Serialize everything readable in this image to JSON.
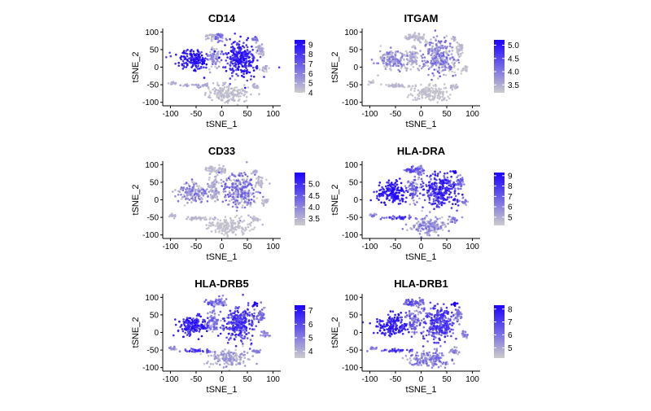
{
  "figure": {
    "background": "#ffffff",
    "low_color": "#cccccc",
    "high_color": "#1a00ff"
  },
  "chart_data": [
    {
      "type": "scatter",
      "title": "CD14",
      "xlabel": "tSNE_1",
      "ylabel": "tSNE_2",
      "xlim": [
        -115,
        115
      ],
      "ylim": [
        -110,
        110
      ],
      "xticks": [
        "-100",
        "-50",
        "0",
        "50",
        "100"
      ],
      "xtick_values": [
        -100,
        -50,
        0,
        50,
        100
      ],
      "yticks": [
        "100",
        "50",
        "0",
        "-50",
        "-100"
      ],
      "ytick_values": [
        100,
        50,
        0,
        -50,
        -100
      ],
      "color_scale": {
        "min": 4,
        "max": 9.5,
        "ticks": [
          "9",
          "8",
          "7",
          "6",
          "5",
          "4"
        ],
        "tick_values": [
          9,
          8,
          7,
          6,
          5,
          4
        ]
      },
      "clusters": [
        {
          "name": "left-mass",
          "cx": -55,
          "cy": 20,
          "sx": 18,
          "sy": 16,
          "level": 0.85,
          "spread": 0.18
        },
        {
          "name": "upper-left-small",
          "cx": -20,
          "cy": 85,
          "sx": 8,
          "sy": 5,
          "level": 0.1,
          "spread": 0.1
        },
        {
          "name": "mid-upper",
          "cx": -3,
          "cy": 85,
          "sx": 6,
          "sy": 7,
          "level": 0.35,
          "spread": 0.25
        },
        {
          "name": "mid-strand",
          "cx": -15,
          "cy": 30,
          "sx": 6,
          "sy": 18,
          "level": 0.2,
          "spread": 0.2
        },
        {
          "name": "right-mass",
          "cx": 35,
          "cy": 25,
          "sx": 18,
          "sy": 28,
          "level": 0.8,
          "spread": 0.2
        },
        {
          "name": "right-small",
          "cx": 65,
          "cy": 80,
          "sx": 3,
          "sy": 3,
          "level": 0.3,
          "spread": 0.2
        },
        {
          "name": "right-satellite",
          "cx": 75,
          "cy": 50,
          "sx": 5,
          "sy": 10,
          "level": 0.15,
          "spread": 0.1
        },
        {
          "name": "far-right",
          "cx": 85,
          "cy": -5,
          "sx": 4,
          "sy": 5,
          "level": 0.1,
          "spread": 0.1
        },
        {
          "name": "bottom-left",
          "cx": -95,
          "cy": -45,
          "sx": 4,
          "sy": 3,
          "level": 0.15,
          "spread": 0.1
        },
        {
          "name": "bottom-strip",
          "cx": -45,
          "cy": -52,
          "sx": 18,
          "sy": 3,
          "level": 0.15,
          "spread": 0.1
        },
        {
          "name": "bottom-mass",
          "cx": 15,
          "cy": -75,
          "sx": 22,
          "sy": 13,
          "level": 0.05,
          "spread": 0.08
        },
        {
          "name": "bottom-right",
          "cx": 65,
          "cy": -55,
          "sx": 5,
          "sy": 4,
          "level": 0.1,
          "spread": 0.1
        }
      ]
    },
    {
      "type": "scatter",
      "title": "ITGAM",
      "xlabel": "tSNE_1",
      "ylabel": "tSNE_2",
      "xlim": [
        -115,
        115
      ],
      "ylim": [
        -110,
        110
      ],
      "xticks": [
        "-100",
        "-50",
        "0",
        "50",
        "100"
      ],
      "xtick_values": [
        -100,
        -50,
        0,
        50,
        100
      ],
      "yticks": [
        "100",
        "50",
        "0",
        "-50",
        "-100"
      ],
      "ytick_values": [
        100,
        50,
        0,
        -50,
        -100
      ],
      "color_scale": {
        "min": 3.2,
        "max": 5.2,
        "ticks": [
          "5.0",
          "4.5",
          "4.0",
          "3.5"
        ],
        "tick_values": [
          5.0,
          4.5,
          4.0,
          3.5
        ]
      },
      "clusters": [
        {
          "name": "left-mass",
          "cx": -55,
          "cy": 20,
          "sx": 18,
          "sy": 16,
          "level": 0.2,
          "spread": 0.3
        },
        {
          "name": "upper-left-small",
          "cx": -20,
          "cy": 85,
          "sx": 8,
          "sy": 5,
          "level": 0.05,
          "spread": 0.1
        },
        {
          "name": "mid-upper",
          "cx": -3,
          "cy": 85,
          "sx": 6,
          "sy": 7,
          "level": 0.05,
          "spread": 0.1
        },
        {
          "name": "mid-strand",
          "cx": -15,
          "cy": 30,
          "sx": 6,
          "sy": 18,
          "level": 0.1,
          "spread": 0.15
        },
        {
          "name": "right-mass",
          "cx": 35,
          "cy": 25,
          "sx": 18,
          "sy": 28,
          "level": 0.2,
          "spread": 0.35
        },
        {
          "name": "right-small",
          "cx": 65,
          "cy": 80,
          "sx": 3,
          "sy": 3,
          "level": 0.1,
          "spread": 0.1
        },
        {
          "name": "right-satellite",
          "cx": 75,
          "cy": 50,
          "sx": 5,
          "sy": 10,
          "level": 0.05,
          "spread": 0.1
        },
        {
          "name": "far-right",
          "cx": 85,
          "cy": -5,
          "sx": 4,
          "sy": 5,
          "level": 0.05,
          "spread": 0.1
        },
        {
          "name": "bottom-left",
          "cx": -95,
          "cy": -45,
          "sx": 4,
          "sy": 3,
          "level": 0.05,
          "spread": 0.1
        },
        {
          "name": "bottom-strip",
          "cx": -45,
          "cy": -52,
          "sx": 18,
          "sy": 3,
          "level": 0.05,
          "spread": 0.1
        },
        {
          "name": "bottom-mass",
          "cx": 15,
          "cy": -75,
          "sx": 22,
          "sy": 13,
          "level": 0.03,
          "spread": 0.06
        },
        {
          "name": "bottom-right",
          "cx": 65,
          "cy": -55,
          "sx": 5,
          "sy": 4,
          "level": 0.05,
          "spread": 0.1
        }
      ]
    },
    {
      "type": "scatter",
      "title": "CD33",
      "xlabel": "tSNE_1",
      "ylabel": "tSNE_2",
      "xlim": [
        -115,
        115
      ],
      "ylim": [
        -110,
        110
      ],
      "xticks": [
        "-100",
        "-50",
        "0",
        "50",
        "100"
      ],
      "xtick_values": [
        -100,
        -50,
        0,
        50,
        100
      ],
      "yticks": [
        "100",
        "50",
        "0",
        "-50",
        "-100"
      ],
      "ytick_values": [
        100,
        50,
        0,
        -50,
        -100
      ],
      "color_scale": {
        "min": 3.2,
        "max": 5.5,
        "ticks": [
          "5.0",
          "4.5",
          "4.0",
          "3.5"
        ],
        "tick_values": [
          5.0,
          4.5,
          4.0,
          3.5
        ]
      },
      "clusters": [
        {
          "name": "left-mass",
          "cx": -55,
          "cy": 20,
          "sx": 18,
          "sy": 16,
          "level": 0.22,
          "spread": 0.3
        },
        {
          "name": "upper-left-small",
          "cx": -20,
          "cy": 85,
          "sx": 8,
          "sy": 5,
          "level": 0.05,
          "spread": 0.1
        },
        {
          "name": "mid-upper",
          "cx": -3,
          "cy": 85,
          "sx": 6,
          "sy": 7,
          "level": 0.05,
          "spread": 0.1
        },
        {
          "name": "mid-strand",
          "cx": -15,
          "cy": 30,
          "sx": 6,
          "sy": 18,
          "level": 0.1,
          "spread": 0.15
        },
        {
          "name": "right-mass",
          "cx": 35,
          "cy": 25,
          "sx": 18,
          "sy": 28,
          "level": 0.25,
          "spread": 0.35
        },
        {
          "name": "right-small",
          "cx": 65,
          "cy": 80,
          "sx": 3,
          "sy": 3,
          "level": 0.1,
          "spread": 0.1
        },
        {
          "name": "right-satellite",
          "cx": 75,
          "cy": 50,
          "sx": 5,
          "sy": 10,
          "level": 0.05,
          "spread": 0.1
        },
        {
          "name": "far-right",
          "cx": 85,
          "cy": -5,
          "sx": 4,
          "sy": 5,
          "level": 0.05,
          "spread": 0.1
        },
        {
          "name": "bottom-left",
          "cx": -95,
          "cy": -45,
          "sx": 4,
          "sy": 3,
          "level": 0.05,
          "spread": 0.1
        },
        {
          "name": "bottom-strip",
          "cx": -45,
          "cy": -52,
          "sx": 18,
          "sy": 3,
          "level": 0.05,
          "spread": 0.1
        },
        {
          "name": "bottom-mass",
          "cx": 15,
          "cy": -75,
          "sx": 22,
          "sy": 13,
          "level": 0.03,
          "spread": 0.06
        },
        {
          "name": "bottom-right",
          "cx": 65,
          "cy": -55,
          "sx": 5,
          "sy": 4,
          "level": 0.05,
          "spread": 0.1
        }
      ]
    },
    {
      "type": "scatter",
      "title": "HLA-DRA",
      "xlabel": "tSNE_1",
      "ylabel": "tSNE_2",
      "xlim": [
        -115,
        115
      ],
      "ylim": [
        -110,
        110
      ],
      "xticks": [
        "-100",
        "-50",
        "0",
        "50",
        "100"
      ],
      "xtick_values": [
        -100,
        -50,
        0,
        50,
        100
      ],
      "yticks": [
        "100",
        "50",
        "0",
        "-50",
        "-100"
      ],
      "ytick_values": [
        100,
        50,
        0,
        -50,
        -100
      ],
      "color_scale": {
        "min": 4.2,
        "max": 9.3,
        "ticks": [
          "9",
          "8",
          "7",
          "6",
          "5"
        ],
        "tick_values": [
          9,
          8,
          7,
          6,
          5
        ]
      },
      "clusters": [
        {
          "name": "left-mass",
          "cx": -55,
          "cy": 20,
          "sx": 18,
          "sy": 16,
          "level": 0.85,
          "spread": 0.15
        },
        {
          "name": "upper-left-small",
          "cx": -20,
          "cy": 85,
          "sx": 8,
          "sy": 5,
          "level": 0.5,
          "spread": 0.25
        },
        {
          "name": "mid-upper",
          "cx": -3,
          "cy": 85,
          "sx": 6,
          "sy": 7,
          "level": 0.4,
          "spread": 0.25
        },
        {
          "name": "mid-strand",
          "cx": -15,
          "cy": 30,
          "sx": 6,
          "sy": 18,
          "level": 0.35,
          "spread": 0.3
        },
        {
          "name": "right-mass",
          "cx": 35,
          "cy": 25,
          "sx": 18,
          "sy": 28,
          "level": 0.7,
          "spread": 0.25
        },
        {
          "name": "right-small",
          "cx": 65,
          "cy": 80,
          "sx": 3,
          "sy": 3,
          "level": 0.95,
          "spread": 0.05
        },
        {
          "name": "right-satellite",
          "cx": 75,
          "cy": 50,
          "sx": 5,
          "sy": 10,
          "level": 0.4,
          "spread": 0.25
        },
        {
          "name": "far-right",
          "cx": 85,
          "cy": -5,
          "sx": 4,
          "sy": 5,
          "level": 0.3,
          "spread": 0.2
        },
        {
          "name": "bottom-left",
          "cx": -95,
          "cy": -45,
          "sx": 4,
          "sy": 3,
          "level": 0.3,
          "spread": 0.2
        },
        {
          "name": "bottom-strip",
          "cx": -45,
          "cy": -52,
          "sx": 18,
          "sy": 3,
          "level": 0.65,
          "spread": 0.25
        },
        {
          "name": "bottom-mass",
          "cx": 15,
          "cy": -75,
          "sx": 22,
          "sy": 13,
          "level": 0.25,
          "spread": 0.25
        },
        {
          "name": "bottom-right",
          "cx": 65,
          "cy": -55,
          "sx": 5,
          "sy": 4,
          "level": 0.3,
          "spread": 0.2
        }
      ]
    },
    {
      "type": "scatter",
      "title": "HLA-DRB5",
      "xlabel": "tSNE_1",
      "ylabel": "tSNE_2",
      "xlim": [
        -115,
        115
      ],
      "ylim": [
        -110,
        110
      ],
      "xticks": [
        "-100",
        "-50",
        "0",
        "50",
        "100"
      ],
      "xtick_values": [
        -100,
        -50,
        0,
        50,
        100
      ],
      "yticks": [
        "100",
        "50",
        "0",
        "-50",
        "-100"
      ],
      "ytick_values": [
        100,
        50,
        0,
        -50,
        -100
      ],
      "color_scale": {
        "min": 3.5,
        "max": 7.4,
        "ticks": [
          "7",
          "6",
          "5",
          "4"
        ],
        "tick_values": [
          7,
          6,
          5,
          4
        ]
      },
      "clusters": [
        {
          "name": "left-mass",
          "cx": -55,
          "cy": 20,
          "sx": 18,
          "sy": 16,
          "level": 0.8,
          "spread": 0.18
        },
        {
          "name": "upper-left-small",
          "cx": -20,
          "cy": 85,
          "sx": 8,
          "sy": 5,
          "level": 0.45,
          "spread": 0.25
        },
        {
          "name": "mid-upper",
          "cx": -3,
          "cy": 85,
          "sx": 6,
          "sy": 7,
          "level": 0.35,
          "spread": 0.25
        },
        {
          "name": "mid-strand",
          "cx": -15,
          "cy": 30,
          "sx": 6,
          "sy": 18,
          "level": 0.3,
          "spread": 0.3
        },
        {
          "name": "right-mass",
          "cx": 35,
          "cy": 25,
          "sx": 18,
          "sy": 28,
          "level": 0.65,
          "spread": 0.25
        },
        {
          "name": "right-small",
          "cx": 65,
          "cy": 80,
          "sx": 3,
          "sy": 3,
          "level": 0.95,
          "spread": 0.05
        },
        {
          "name": "right-satellite",
          "cx": 75,
          "cy": 50,
          "sx": 5,
          "sy": 10,
          "level": 0.35,
          "spread": 0.25
        },
        {
          "name": "far-right",
          "cx": 85,
          "cy": -5,
          "sx": 4,
          "sy": 5,
          "level": 0.25,
          "spread": 0.2
        },
        {
          "name": "bottom-left",
          "cx": -95,
          "cy": -45,
          "sx": 4,
          "sy": 3,
          "level": 0.25,
          "spread": 0.2
        },
        {
          "name": "bottom-strip",
          "cx": -45,
          "cy": -52,
          "sx": 18,
          "sy": 3,
          "level": 0.6,
          "spread": 0.25
        },
        {
          "name": "bottom-mass",
          "cx": 15,
          "cy": -75,
          "sx": 22,
          "sy": 13,
          "level": 0.15,
          "spread": 0.2
        },
        {
          "name": "bottom-right",
          "cx": 65,
          "cy": -55,
          "sx": 5,
          "sy": 4,
          "level": 0.25,
          "spread": 0.2
        }
      ]
    },
    {
      "type": "scatter",
      "title": "HLA-DRB1",
      "xlabel": "tSNE_1",
      "ylabel": "tSNE_2",
      "xlim": [
        -115,
        115
      ],
      "ylim": [
        -110,
        110
      ],
      "xticks": [
        "-100",
        "-50",
        "0",
        "50",
        "100"
      ],
      "xtick_values": [
        -100,
        -50,
        0,
        50,
        100
      ],
      "yticks": [
        "100",
        "50",
        "0",
        "-50",
        "-100"
      ],
      "ytick_values": [
        100,
        50,
        0,
        -50,
        -100
      ],
      "color_scale": {
        "min": 4.2,
        "max": 8.3,
        "ticks": [
          "8",
          "7",
          "6",
          "5"
        ],
        "tick_values": [
          8,
          7,
          6,
          5
        ]
      },
      "clusters": [
        {
          "name": "left-mass",
          "cx": -55,
          "cy": 20,
          "sx": 18,
          "sy": 16,
          "level": 0.8,
          "spread": 0.18
        },
        {
          "name": "upper-left-small",
          "cx": -20,
          "cy": 85,
          "sx": 8,
          "sy": 5,
          "level": 0.5,
          "spread": 0.25
        },
        {
          "name": "mid-upper",
          "cx": -3,
          "cy": 85,
          "sx": 6,
          "sy": 7,
          "level": 0.4,
          "spread": 0.25
        },
        {
          "name": "mid-strand",
          "cx": -15,
          "cy": 30,
          "sx": 6,
          "sy": 18,
          "level": 0.35,
          "spread": 0.3
        },
        {
          "name": "right-mass",
          "cx": 35,
          "cy": 25,
          "sx": 18,
          "sy": 28,
          "level": 0.6,
          "spread": 0.25
        },
        {
          "name": "right-small",
          "cx": 65,
          "cy": 80,
          "sx": 3,
          "sy": 3,
          "level": 0.95,
          "spread": 0.05
        },
        {
          "name": "right-satellite",
          "cx": 75,
          "cy": 50,
          "sx": 5,
          "sy": 10,
          "level": 0.35,
          "spread": 0.25
        },
        {
          "name": "far-right",
          "cx": 85,
          "cy": -5,
          "sx": 4,
          "sy": 5,
          "level": 0.3,
          "spread": 0.2
        },
        {
          "name": "bottom-left",
          "cx": -95,
          "cy": -45,
          "sx": 4,
          "sy": 3,
          "level": 0.3,
          "spread": 0.2
        },
        {
          "name": "bottom-strip",
          "cx": -45,
          "cy": -52,
          "sx": 18,
          "sy": 3,
          "level": 0.6,
          "spread": 0.25
        },
        {
          "name": "bottom-mass",
          "cx": 15,
          "cy": -75,
          "sx": 22,
          "sy": 13,
          "level": 0.3,
          "spread": 0.25
        },
        {
          "name": "bottom-right",
          "cx": 65,
          "cy": -55,
          "sx": 5,
          "sy": 4,
          "level": 0.3,
          "spread": 0.2
        }
      ]
    }
  ]
}
